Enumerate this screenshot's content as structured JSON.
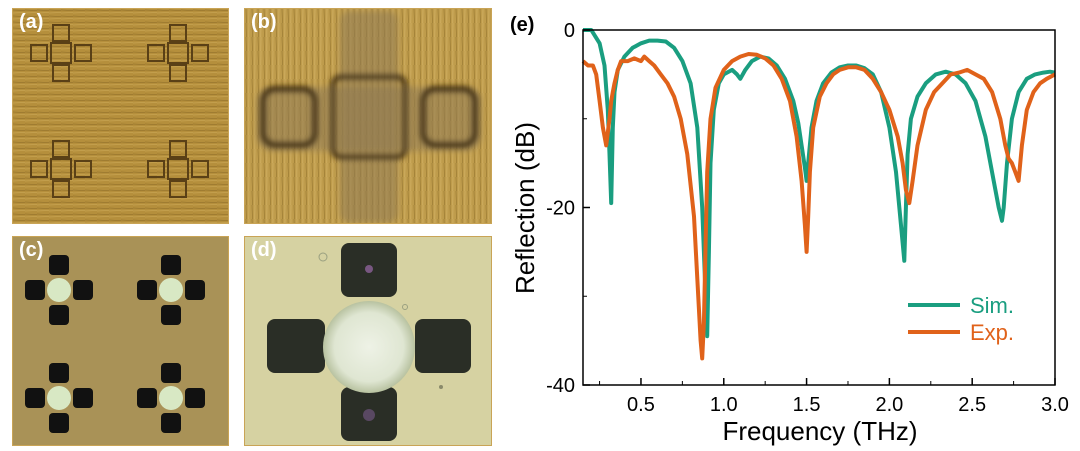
{
  "panels": [
    {
      "label": "(a)"
    },
    {
      "label": "(b)"
    },
    {
      "label": "(c)"
    },
    {
      "label": "(d)"
    }
  ],
  "chart_label": "(e)",
  "colors": {
    "sim": "#1a9e80",
    "exp": "#e0621a",
    "tan_bg": "#b7933e",
    "pale_bg": "#d9d6a8"
  },
  "chart_data": {
    "type": "line",
    "title": "",
    "xlabel": "Frequency (THz)",
    "ylabel": "Reflection (dB)",
    "xlim": [
      0.15,
      3.0
    ],
    "ylim": [
      -40,
      0
    ],
    "xticks": [
      0.5,
      1.0,
      1.5,
      2.0,
      2.5,
      3.0
    ],
    "xtick_labels": [
      "0.5",
      "1.0",
      "1.5",
      "2.0",
      "2.5",
      "3.0"
    ],
    "yticks": [
      0,
      -20,
      -40
    ],
    "ytick_labels": [
      "0",
      "-20",
      "-40"
    ],
    "legend_position": "bottom-right",
    "series": [
      {
        "name": "Sim.",
        "color": "#1a9e80",
        "x": [
          0.15,
          0.2,
          0.25,
          0.28,
          0.3,
          0.31,
          0.32,
          0.33,
          0.34,
          0.36,
          0.4,
          0.45,
          0.5,
          0.55,
          0.6,
          0.65,
          0.7,
          0.75,
          0.8,
          0.84,
          0.87,
          0.89,
          0.9,
          0.91,
          0.92,
          0.94,
          0.97,
          1.0,
          1.05,
          1.08,
          1.1,
          1.13,
          1.17,
          1.22,
          1.27,
          1.32,
          1.37,
          1.42,
          1.45,
          1.47,
          1.49,
          1.5,
          1.51,
          1.53,
          1.56,
          1.6,
          1.65,
          1.7,
          1.75,
          1.8,
          1.85,
          1.9,
          1.95,
          2.0,
          2.04,
          2.07,
          2.09,
          2.1,
          2.11,
          2.13,
          2.17,
          2.22,
          2.28,
          2.34,
          2.4,
          2.46,
          2.52,
          2.58,
          2.63,
          2.66,
          2.68,
          2.69,
          2.71,
          2.74,
          2.78,
          2.83,
          2.88,
          2.93,
          2.97,
          3.0
        ],
        "y": [
          0,
          0,
          -1.5,
          -4,
          -9,
          -14,
          -19.5,
          -11,
          -7,
          -4.5,
          -3,
          -2,
          -1.5,
          -1.2,
          -1.2,
          -1.3,
          -2,
          -3.5,
          -6,
          -11,
          -20,
          -30,
          -34.5,
          -25,
          -15,
          -9,
          -6,
          -5,
          -4.5,
          -5,
          -5.5,
          -4.5,
          -3.5,
          -3,
          -3.2,
          -4,
          -5.5,
          -8,
          -10.5,
          -13,
          -15.5,
          -17,
          -15,
          -11,
          -8,
          -6,
          -4.8,
          -4.2,
          -4,
          -4,
          -4.3,
          -5,
          -7,
          -11,
          -16,
          -22,
          -26,
          -20,
          -14,
          -10,
          -7.5,
          -6,
          -5,
          -4.7,
          -5,
          -6,
          -8,
          -12,
          -17,
          -20,
          -21.5,
          -20,
          -15,
          -10,
          -7,
          -5.5,
          -5,
          -4.8,
          -4.7,
          -4.8
        ]
      },
      {
        "name": "Exp.",
        "color": "#e0621a",
        "x": [
          0.15,
          0.18,
          0.21,
          0.23,
          0.25,
          0.27,
          0.29,
          0.31,
          0.32,
          0.33,
          0.34,
          0.36,
          0.38,
          0.42,
          0.46,
          0.5,
          0.52,
          0.55,
          0.58,
          0.62,
          0.66,
          0.7,
          0.74,
          0.78,
          0.82,
          0.84,
          0.86,
          0.87,
          0.88,
          0.89,
          0.9,
          0.92,
          0.95,
          1.0,
          1.05,
          1.1,
          1.15,
          1.2,
          1.25,
          1.3,
          1.35,
          1.4,
          1.44,
          1.47,
          1.49,
          1.5,
          1.51,
          1.52,
          1.54,
          1.58,
          1.62,
          1.66,
          1.7,
          1.75,
          1.8,
          1.85,
          1.9,
          1.95,
          2.0,
          2.05,
          2.08,
          2.1,
          2.12,
          2.14,
          2.17,
          2.22,
          2.27,
          2.32,
          2.37,
          2.42,
          2.47,
          2.52,
          2.57,
          2.62,
          2.67,
          2.7,
          2.72,
          2.74,
          2.76,
          2.78,
          2.8,
          2.83,
          2.87,
          2.91,
          2.95,
          3.0
        ],
        "y": [
          -3.5,
          -4,
          -4,
          -5,
          -8,
          -11,
          -13,
          -10,
          -8,
          -7,
          -6,
          -4.5,
          -3.5,
          -3.5,
          -3.2,
          -3.5,
          -3,
          -3.5,
          -4,
          -5,
          -6,
          -7.5,
          -10,
          -14,
          -21,
          -28,
          -35,
          -37,
          -33,
          -24,
          -16,
          -10,
          -6.5,
          -4.5,
          -3.5,
          -3,
          -2.7,
          -2.8,
          -3.2,
          -4,
          -5.5,
          -8,
          -12,
          -17,
          -22,
          -25,
          -21,
          -16,
          -11,
          -7.5,
          -6,
          -5,
          -4.5,
          -4.2,
          -4.2,
          -4.5,
          -5.5,
          -7,
          -9,
          -12,
          -15,
          -18,
          -19.5,
          -17,
          -13,
          -9,
          -7,
          -6,
          -5,
          -4.8,
          -4.5,
          -5,
          -5.5,
          -7,
          -10,
          -13,
          -14.5,
          -15,
          -16,
          -17,
          -13,
          -9,
          -7,
          -6,
          -5.5,
          -5
        ]
      }
    ]
  }
}
